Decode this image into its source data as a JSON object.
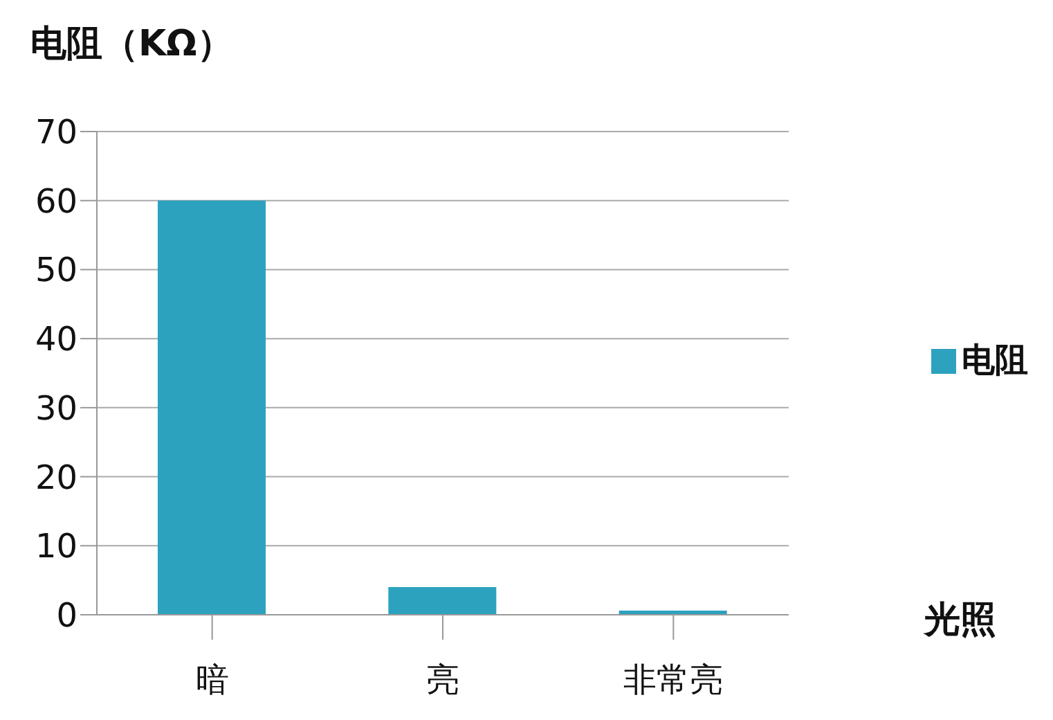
{
  "chart_data": {
    "type": "bar",
    "ylabel": "电阻（KΩ）",
    "xlabel": "光照",
    "categories": [
      "暗",
      "亮",
      "非常亮"
    ],
    "series": [
      {
        "name": "电阻",
        "color": "#2ca2bf",
        "values": [
          60,
          4,
          0.6
        ]
      }
    ],
    "ylim": [
      0,
      70
    ],
    "yticks": [
      0,
      10,
      20,
      30,
      40,
      50,
      60,
      70
    ],
    "grid": "y",
    "legend": "right"
  }
}
